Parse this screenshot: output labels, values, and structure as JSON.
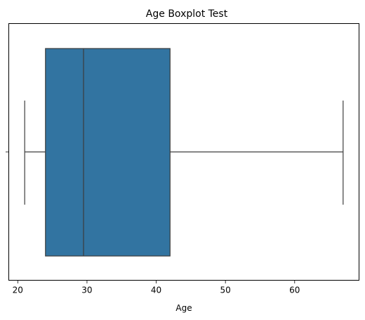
{
  "chart_data": {
    "type": "boxplot",
    "title": "Age Boxplot Test",
    "xlabel": "Age",
    "ylabel": "",
    "orientation": "horizontal",
    "xlim": [
      18.7,
      69.3
    ],
    "xticks": [
      20,
      30,
      40,
      50,
      60
    ],
    "grid": false,
    "legend": "none",
    "box": {
      "whisker_low": 21,
      "q1": 24,
      "median": 29.5,
      "q3": 42,
      "whisker_high": 67
    },
    "colors": {
      "box_fill": "#3274a1",
      "line": "#3d3d3d",
      "axis": "#000000"
    }
  }
}
